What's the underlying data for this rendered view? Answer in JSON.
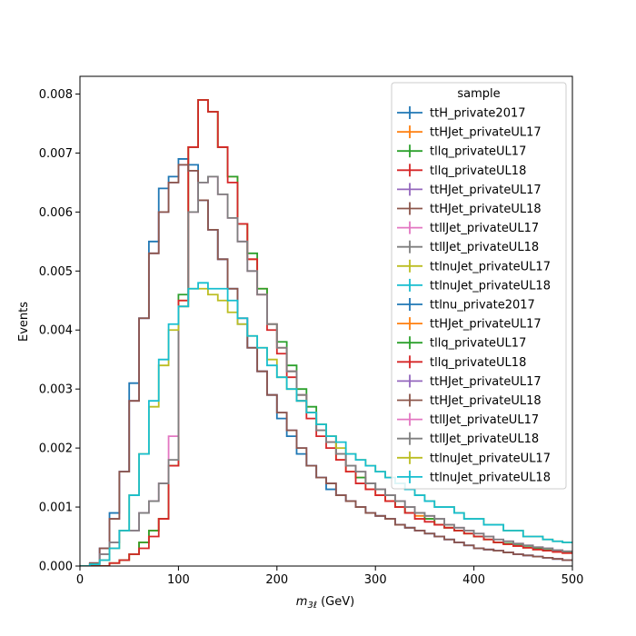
{
  "chart_data": {
    "type": "line",
    "style": "step-histogram",
    "xlabel_parts": {
      "base": "m",
      "subscript": "3ℓ",
      "unit": " (GeV)"
    },
    "ylabel": "Events",
    "xlim": [
      0,
      500
    ],
    "ylim": [
      0,
      0.0083
    ],
    "x_ticks": [
      0,
      100,
      200,
      300,
      400,
      500
    ],
    "y_ticks": [
      0.0,
      0.001,
      0.002,
      0.003,
      0.004,
      0.005,
      0.006,
      0.007,
      0.008
    ],
    "y_tick_labels": [
      "0.000",
      "0.001",
      "0.002",
      "0.003",
      "0.004",
      "0.005",
      "0.006",
      "0.007",
      "0.008"
    ],
    "grid": false,
    "bin_width": 10,
    "x": [
      0,
      10,
      20,
      30,
      40,
      50,
      60,
      70,
      80,
      90,
      100,
      110,
      120,
      130,
      140,
      150,
      160,
      170,
      180,
      190,
      200,
      210,
      220,
      230,
      240,
      250,
      260,
      270,
      280,
      290,
      300,
      310,
      320,
      330,
      340,
      350,
      360,
      370,
      380,
      390,
      400,
      410,
      420,
      430,
      440,
      450,
      460,
      470,
      480,
      490
    ],
    "legend": {
      "title": "sample",
      "position": "upper right"
    },
    "series": [
      {
        "name": "ttH_private2017",
        "color": "#1f77b4",
        "values": [
          0,
          5e-05,
          0.0003,
          0.0009,
          0.0016,
          0.0031,
          0.0042,
          0.0055,
          0.0064,
          0.0066,
          0.0069,
          0.0068,
          0.0062,
          0.0057,
          0.0052,
          0.0047,
          0.0041,
          0.0037,
          0.0033,
          0.0029,
          0.0025,
          0.0022,
          0.0019,
          0.0017,
          0.0015,
          0.0013,
          0.0012,
          0.0011,
          0.001,
          0.0009,
          0.00085,
          0.0008,
          0.0007,
          0.00065,
          0.0006,
          0.00055,
          0.0005,
          0.00045,
          0.0004,
          0.00035,
          0.0003,
          0.00028,
          0.00026,
          0.00023,
          0.0002,
          0.00018,
          0.00016,
          0.00014,
          0.00012,
          0.0001
        ]
      },
      {
        "name": "ttHJet_privateUL17",
        "color": "#ff7f0e",
        "values": [
          0,
          0,
          0,
          5e-05,
          0.0001,
          0.0002,
          0.0004,
          0.0006,
          0.0008,
          0.0017,
          0.0045,
          0.0071,
          0.0079,
          0.0077,
          0.0071,
          0.0066,
          0.0058,
          0.0052,
          0.0047,
          0.0041,
          0.0037,
          0.0033,
          0.0029,
          0.0026,
          0.0023,
          0.0021,
          0.0018,
          0.0016,
          0.0015,
          0.0013,
          0.0012,
          0.0011,
          0.001,
          0.0009,
          0.00085,
          0.0008,
          0.0007,
          0.00065,
          0.0006,
          0.00055,
          0.0005,
          0.00045,
          0.0004,
          0.00037,
          0.00034,
          0.00031,
          0.00028,
          0.00026,
          0.00024,
          0.00022
        ]
      },
      {
        "name": "tllq_privateUL17",
        "color": "#2ca02c",
        "values": [
          0,
          0,
          0,
          5e-05,
          0.0001,
          0.0002,
          0.0004,
          0.0006,
          0.0008,
          0.0017,
          0.0046,
          0.0071,
          0.0079,
          0.0077,
          0.0071,
          0.0066,
          0.0058,
          0.0053,
          0.0047,
          0.0041,
          0.0038,
          0.0034,
          0.003,
          0.0027,
          0.0024,
          0.0022,
          0.0019,
          0.0017,
          0.0015,
          0.0014,
          0.0013,
          0.0012,
          0.001,
          0.0009,
          0.0009,
          0.0008,
          0.0007,
          0.00065,
          0.0006,
          0.00055,
          0.0005,
          0.00045,
          0.0004,
          0.00038,
          0.00035,
          0.00032,
          0.0003,
          0.00027,
          0.00025,
          0.00023
        ]
      },
      {
        "name": "tllq_privateUL18",
        "color": "#d62728",
        "values": [
          0,
          0,
          0,
          5e-05,
          0.0001,
          0.0002,
          0.0003,
          0.0005,
          0.0008,
          0.0017,
          0.0045,
          0.0071,
          0.0079,
          0.0077,
          0.0071,
          0.0065,
          0.0058,
          0.0052,
          0.0046,
          0.004,
          0.0036,
          0.0032,
          0.0028,
          0.0025,
          0.0022,
          0.002,
          0.0018,
          0.0016,
          0.0014,
          0.0013,
          0.0012,
          0.0011,
          0.001,
          0.0009,
          0.0008,
          0.00075,
          0.0007,
          0.00065,
          0.0006,
          0.00055,
          0.0005,
          0.00045,
          0.0004,
          0.00037,
          0.00034,
          0.00031,
          0.00028,
          0.00026,
          0.00024,
          0.00022
        ]
      },
      {
        "name": "ttHJet_privateUL17",
        "color": "#9467bd",
        "values": [
          0,
          5e-05,
          0.0003,
          0.0008,
          0.0016,
          0.0028,
          0.0042,
          0.0053,
          0.006,
          0.0065,
          0.0068,
          0.0067,
          0.0062,
          0.0057,
          0.0052,
          0.0047,
          0.0042,
          0.0037,
          0.0033,
          0.0029,
          0.0026,
          0.0023,
          0.002,
          0.0017,
          0.0015,
          0.0014,
          0.0012,
          0.0011,
          0.001,
          0.0009,
          0.00085,
          0.0008,
          0.0007,
          0.00065,
          0.0006,
          0.00055,
          0.0005,
          0.00045,
          0.0004,
          0.00035,
          0.0003,
          0.00028,
          0.00026,
          0.00023,
          0.0002,
          0.00018,
          0.00016,
          0.00014,
          0.00012,
          0.0001
        ]
      },
      {
        "name": "ttHJet_privateUL18",
        "color": "#8c564b",
        "values": [
          0,
          5e-05,
          0.0003,
          0.0008,
          0.0016,
          0.0028,
          0.0042,
          0.0053,
          0.006,
          0.0065,
          0.0068,
          0.0067,
          0.0062,
          0.0057,
          0.0052,
          0.0047,
          0.0042,
          0.0037,
          0.0033,
          0.0029,
          0.0026,
          0.0023,
          0.002,
          0.0017,
          0.0015,
          0.0014,
          0.0012,
          0.0011,
          0.001,
          0.0009,
          0.00085,
          0.0008,
          0.0007,
          0.00065,
          0.0006,
          0.00055,
          0.0005,
          0.00045,
          0.0004,
          0.00035,
          0.0003,
          0.00028,
          0.00026,
          0.00023,
          0.0002,
          0.00018,
          0.00016,
          0.00014,
          0.00012,
          0.0001
        ]
      },
      {
        "name": "ttllJet_privateUL17",
        "color": "#e377c2",
        "values": [
          0,
          3e-05,
          0.0002,
          0.0004,
          0.0006,
          0.0006,
          0.0009,
          0.0011,
          0.0014,
          0.0022,
          0.0044,
          0.006,
          0.0065,
          0.0066,
          0.0063,
          0.0059,
          0.0055,
          0.005,
          0.0046,
          0.0041,
          0.0037,
          0.0033,
          0.0029,
          0.0026,
          0.0023,
          0.0021,
          0.0019,
          0.0017,
          0.0016,
          0.0014,
          0.0013,
          0.0012,
          0.0011,
          0.001,
          0.0009,
          0.00085,
          0.0008,
          0.0007,
          0.00065,
          0.0006,
          0.00055,
          0.0005,
          0.00045,
          0.00042,
          0.00038,
          0.00035,
          0.00032,
          0.0003,
          0.00027,
          0.00025
        ]
      },
      {
        "name": "ttllJet_privateUL18",
        "color": "#7f7f7f",
        "values": [
          0,
          3e-05,
          0.0002,
          0.0004,
          0.0006,
          0.0006,
          0.0009,
          0.0011,
          0.0014,
          0.0018,
          0.0044,
          0.006,
          0.0065,
          0.0066,
          0.0063,
          0.0059,
          0.0055,
          0.005,
          0.0046,
          0.0041,
          0.0037,
          0.0033,
          0.0029,
          0.0026,
          0.0023,
          0.0021,
          0.0019,
          0.0017,
          0.0016,
          0.0014,
          0.0013,
          0.0012,
          0.0011,
          0.001,
          0.0009,
          0.00085,
          0.0008,
          0.0007,
          0.00065,
          0.0006,
          0.00055,
          0.0005,
          0.00045,
          0.00042,
          0.00038,
          0.00035,
          0.00032,
          0.0003,
          0.00027,
          0.00025
        ]
      },
      {
        "name": "ttlnuJet_privateUL17",
        "color": "#bcbd22",
        "values": [
          0,
          3e-05,
          0.0001,
          0.0003,
          0.0006,
          0.0012,
          0.0019,
          0.0027,
          0.0034,
          0.004,
          0.0044,
          0.0047,
          0.0047,
          0.0046,
          0.0045,
          0.0043,
          0.0041,
          0.0039,
          0.0037,
          0.0035,
          0.0032,
          0.003,
          0.0028,
          0.0026,
          0.0024,
          0.0022,
          0.002,
          0.0019,
          0.0018,
          0.0017,
          0.0016,
          0.0015,
          0.0014,
          0.0013,
          0.0012,
          0.0011,
          0.001,
          0.001,
          0.0009,
          0.0008,
          0.0008,
          0.0007,
          0.0007,
          0.0006,
          0.0006,
          0.0005,
          0.0005,
          0.00045,
          0.00042,
          0.0004
        ]
      },
      {
        "name": "ttlnuJet_privateUL18",
        "color": "#17becf",
        "values": [
          0,
          3e-05,
          0.0001,
          0.0003,
          0.0006,
          0.0012,
          0.0019,
          0.0028,
          0.0035,
          0.0041,
          0.0044,
          0.0047,
          0.0048,
          0.0047,
          0.0047,
          0.0045,
          0.0042,
          0.0039,
          0.0037,
          0.0034,
          0.0032,
          0.003,
          0.0028,
          0.0026,
          0.0024,
          0.0022,
          0.0021,
          0.0019,
          0.0018,
          0.0017,
          0.0016,
          0.0015,
          0.0014,
          0.0013,
          0.0012,
          0.0011,
          0.001,
          0.001,
          0.0009,
          0.0008,
          0.0008,
          0.0007,
          0.0007,
          0.0006,
          0.0006,
          0.0005,
          0.0005,
          0.00045,
          0.00042,
          0.0004
        ]
      },
      {
        "name": "ttlnu_private2017",
        "color": "#1f77b4",
        "values": null
      },
      {
        "name": "ttHJet_privateUL17",
        "color": "#ff7f0e",
        "values": null
      },
      {
        "name": "tllq_privateUL17",
        "color": "#2ca02c",
        "values": null
      },
      {
        "name": "tllq_privateUL18",
        "color": "#d62728",
        "values": null
      },
      {
        "name": "ttHJet_privateUL17",
        "color": "#9467bd",
        "values": null
      },
      {
        "name": "ttHJet_privateUL18",
        "color": "#8c564b",
        "values": null
      },
      {
        "name": "ttllJet_privateUL17",
        "color": "#e377c2",
        "values": null
      },
      {
        "name": "ttllJet_privateUL18",
        "color": "#7f7f7f",
        "values": null
      },
      {
        "name": "ttlnuJet_privateUL17",
        "color": "#bcbd22",
        "values": null
      },
      {
        "name": "ttlnuJet_privateUL18",
        "color": "#17becf",
        "values": null
      }
    ]
  }
}
